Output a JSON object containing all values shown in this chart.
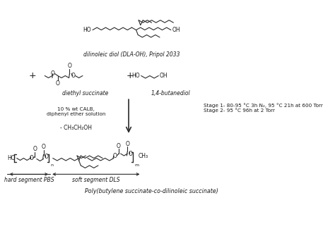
{
  "bg_color": "#ffffff",
  "text_color": "#1a1a1a",
  "line_color": "#2a2a2a",
  "label_dilinoleic": "dilinoleic diol (DLA-OH), Pripol 2033",
  "label_diethyl": "diethyl succinate",
  "label_butanediol": "1,4-butanediol",
  "label_left": "10 % wt CALB,\ndiphenyl ether solution",
  "label_right_line1": "Stage 1- 80-95 °C 3h N₂, 95 °C 21h at 600 Torr",
  "label_right_line2": "Stage 2- 95 °C 96h at 2 Torr",
  "label_byproduct": "- CH₃CH₂OH",
  "label_hard": "hard segment PBS",
  "label_soft": "soft segment DLS",
  "label_poly": "Poly(butylene succinate-co-dilinoleic succinate)",
  "fs": 5.5,
  "fs_label": 6.0,
  "fs_anno": 5.2
}
